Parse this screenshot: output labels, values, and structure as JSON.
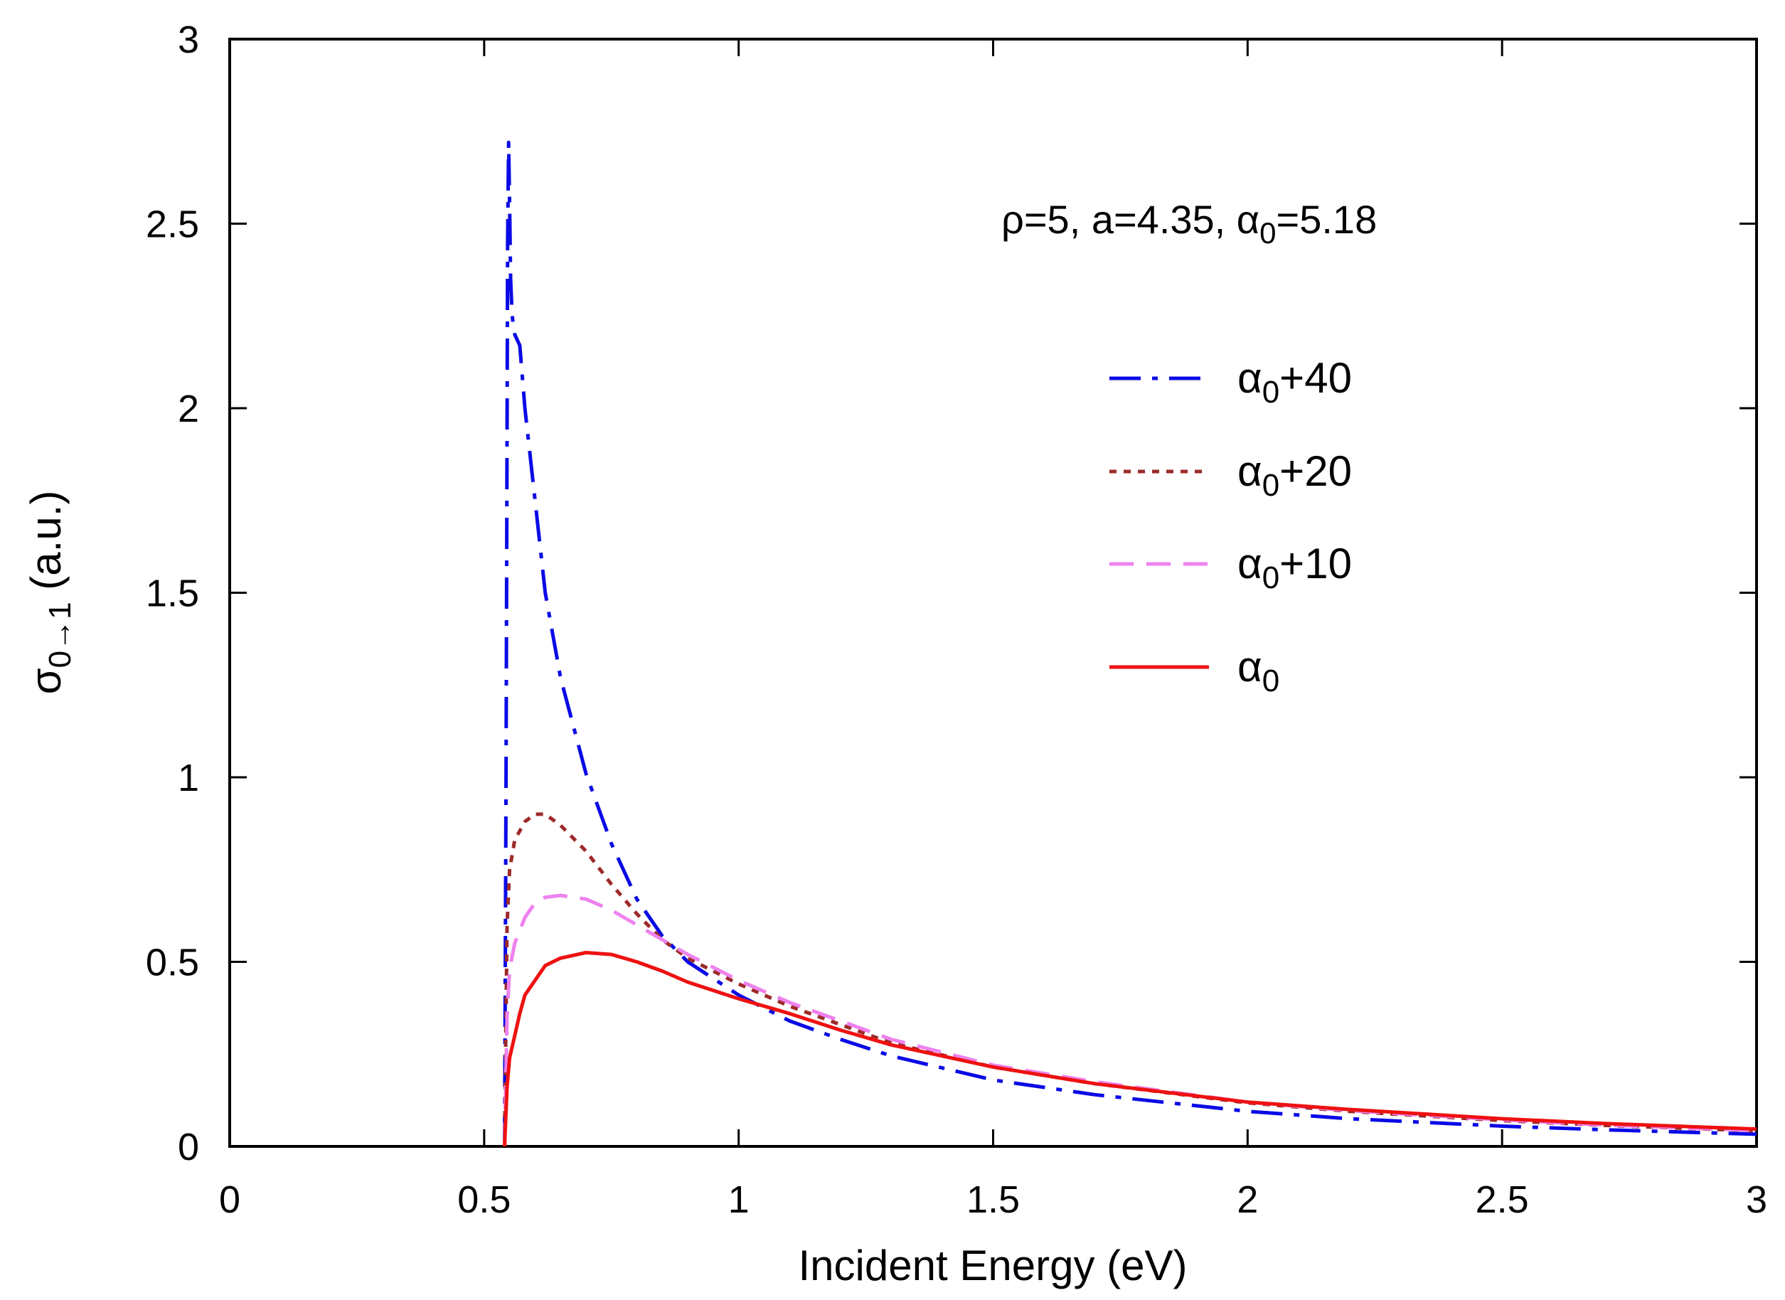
{
  "chart_data": {
    "type": "line",
    "title": "",
    "xlabel": "Incident Energy (eV)",
    "ylabel": {
      "main": "σ",
      "sub": "0→1",
      "unit": " (a.u.)"
    },
    "xlim": [
      0,
      3
    ],
    "ylim": [
      0,
      3
    ],
    "grid": false,
    "legend_position": "right",
    "xticks": [
      0,
      0.5,
      1,
      1.5,
      2,
      2.5,
      3
    ],
    "xtick_labels": [
      "0",
      "0.5",
      "1",
      "1.5",
      "2",
      "2.5",
      "3"
    ],
    "yticks": [
      0,
      0.5,
      1,
      1.5,
      2,
      2.5,
      3
    ],
    "ytick_labels": [
      "0",
      "0.5",
      "1",
      "1.5",
      "2",
      "2.5",
      "3"
    ],
    "annotation": {
      "p1": "ρ=5, a=4.35, α",
      "sub": "0",
      "p2": "=5.18"
    },
    "series": [
      {
        "name": "α0+40",
        "label_main": "α",
        "label_sub": "0",
        "label_suffix": "+40",
        "color": "#0a0ae6",
        "style": "dashdot",
        "x": [
          0.54,
          0.543,
          0.546,
          0.548,
          0.55,
          0.552,
          0.555,
          0.56,
          0.57,
          0.58,
          0.6,
          0.62,
          0.65,
          0.7,
          0.75,
          0.8,
          0.85,
          0.9,
          1.0,
          1.1,
          1.2,
          1.3,
          1.5,
          1.7,
          2.0,
          2.2,
          2.5,
          2.7,
          3.0
        ],
        "y": [
          0.0,
          1.0,
          2.45,
          2.72,
          2.55,
          2.35,
          2.25,
          2.2,
          2.17,
          2.0,
          1.75,
          1.5,
          1.27,
          1.01,
          0.82,
          0.67,
          0.57,
          0.5,
          0.41,
          0.34,
          0.29,
          0.245,
          0.18,
          0.14,
          0.095,
          0.075,
          0.055,
          0.045,
          0.033
        ]
      },
      {
        "name": "α0+20",
        "label_main": "α",
        "label_sub": "0",
        "label_suffix": "+20",
        "color": "#9e2a2a",
        "style": "dotted",
        "x": [
          0.54,
          0.545,
          0.55,
          0.56,
          0.58,
          0.6,
          0.62,
          0.65,
          0.7,
          0.75,
          0.8,
          0.85,
          0.9,
          1.0,
          1.1,
          1.2,
          1.3,
          1.5,
          1.7,
          2.0,
          2.2,
          2.5,
          2.7,
          3.0
        ],
        "y": [
          0.0,
          0.6,
          0.75,
          0.83,
          0.88,
          0.9,
          0.9,
          0.87,
          0.8,
          0.71,
          0.63,
          0.56,
          0.51,
          0.44,
          0.38,
          0.33,
          0.28,
          0.215,
          0.17,
          0.118,
          0.095,
          0.07,
          0.057,
          0.042
        ]
      },
      {
        "name": "α0+10",
        "label_main": "α",
        "label_sub": "0",
        "label_suffix": "+10",
        "color": "#ee82ee",
        "style": "dashed",
        "x": [
          0.54,
          0.545,
          0.55,
          0.56,
          0.58,
          0.6,
          0.62,
          0.65,
          0.7,
          0.75,
          0.8,
          0.85,
          0.9,
          1.0,
          1.1,
          1.2,
          1.3,
          1.5,
          1.7,
          2.0,
          2.2,
          2.5,
          2.7,
          3.0
        ],
        "y": [
          0.0,
          0.35,
          0.48,
          0.55,
          0.62,
          0.66,
          0.675,
          0.68,
          0.67,
          0.64,
          0.6,
          0.56,
          0.52,
          0.45,
          0.39,
          0.34,
          0.29,
          0.22,
          0.175,
          0.12,
          0.097,
          0.072,
          0.058,
          0.043
        ]
      },
      {
        "name": "α0",
        "label_main": "α",
        "label_sub": "0",
        "label_suffix": "",
        "color": "#ee1111",
        "style": "solid",
        "x": [
          0.54,
          0.545,
          0.55,
          0.56,
          0.57,
          0.58,
          0.6,
          0.62,
          0.65,
          0.7,
          0.75,
          0.8,
          0.85,
          0.9,
          1.0,
          1.1,
          1.2,
          1.3,
          1.5,
          1.7,
          2.0,
          2.2,
          2.5,
          2.7,
          3.0
        ],
        "y": [
          0.0,
          0.16,
          0.24,
          0.3,
          0.36,
          0.41,
          0.45,
          0.49,
          0.51,
          0.525,
          0.52,
          0.5,
          0.475,
          0.445,
          0.4,
          0.36,
          0.315,
          0.275,
          0.215,
          0.17,
          0.12,
          0.1,
          0.075,
          0.062,
          0.047
        ]
      }
    ]
  }
}
